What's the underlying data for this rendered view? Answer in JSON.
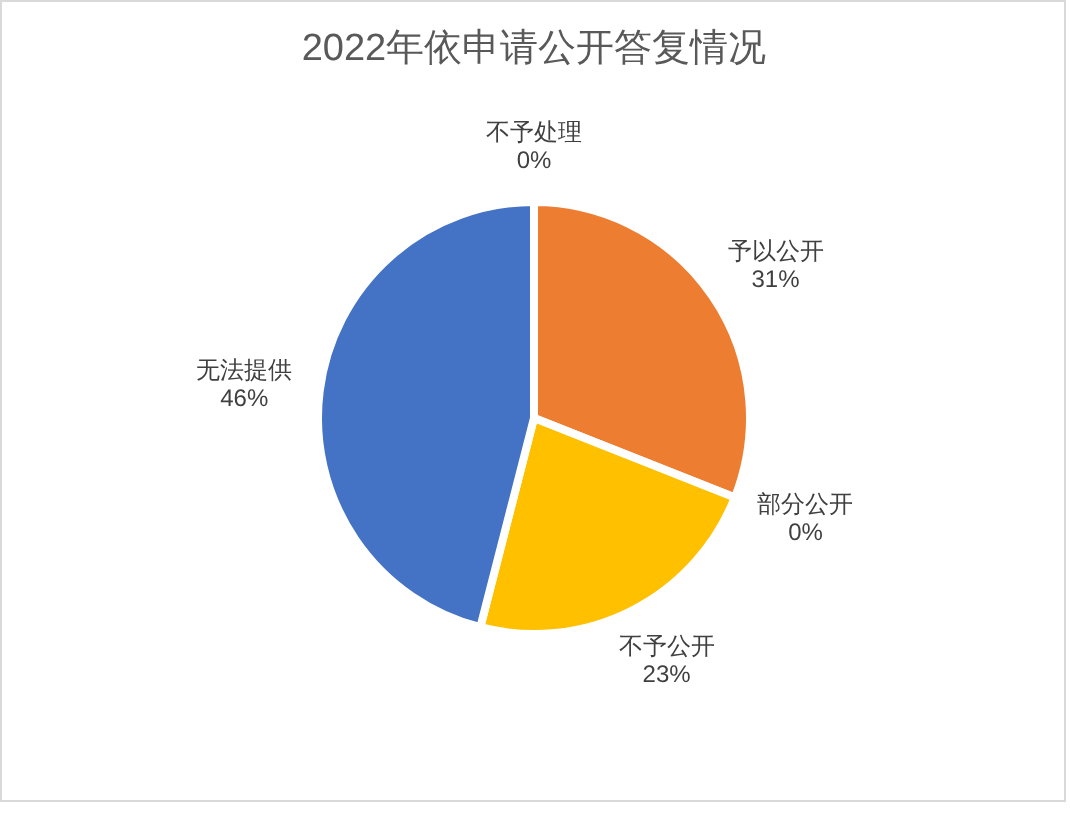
{
  "chart_data": {
    "type": "pie",
    "title": "2022年依申请公开答复情况",
    "categories": [
      "予以公开",
      "部分公开",
      "不予公开",
      "无法提供",
      "不予处理"
    ],
    "values": [
      31,
      0,
      23,
      46,
      0
    ],
    "colors": [
      "#ed7d31",
      null,
      "#ffc000",
      "#4472c4",
      null
    ],
    "value_labels": [
      "31%",
      "0%",
      "23%",
      "46%",
      "0%"
    ]
  }
}
